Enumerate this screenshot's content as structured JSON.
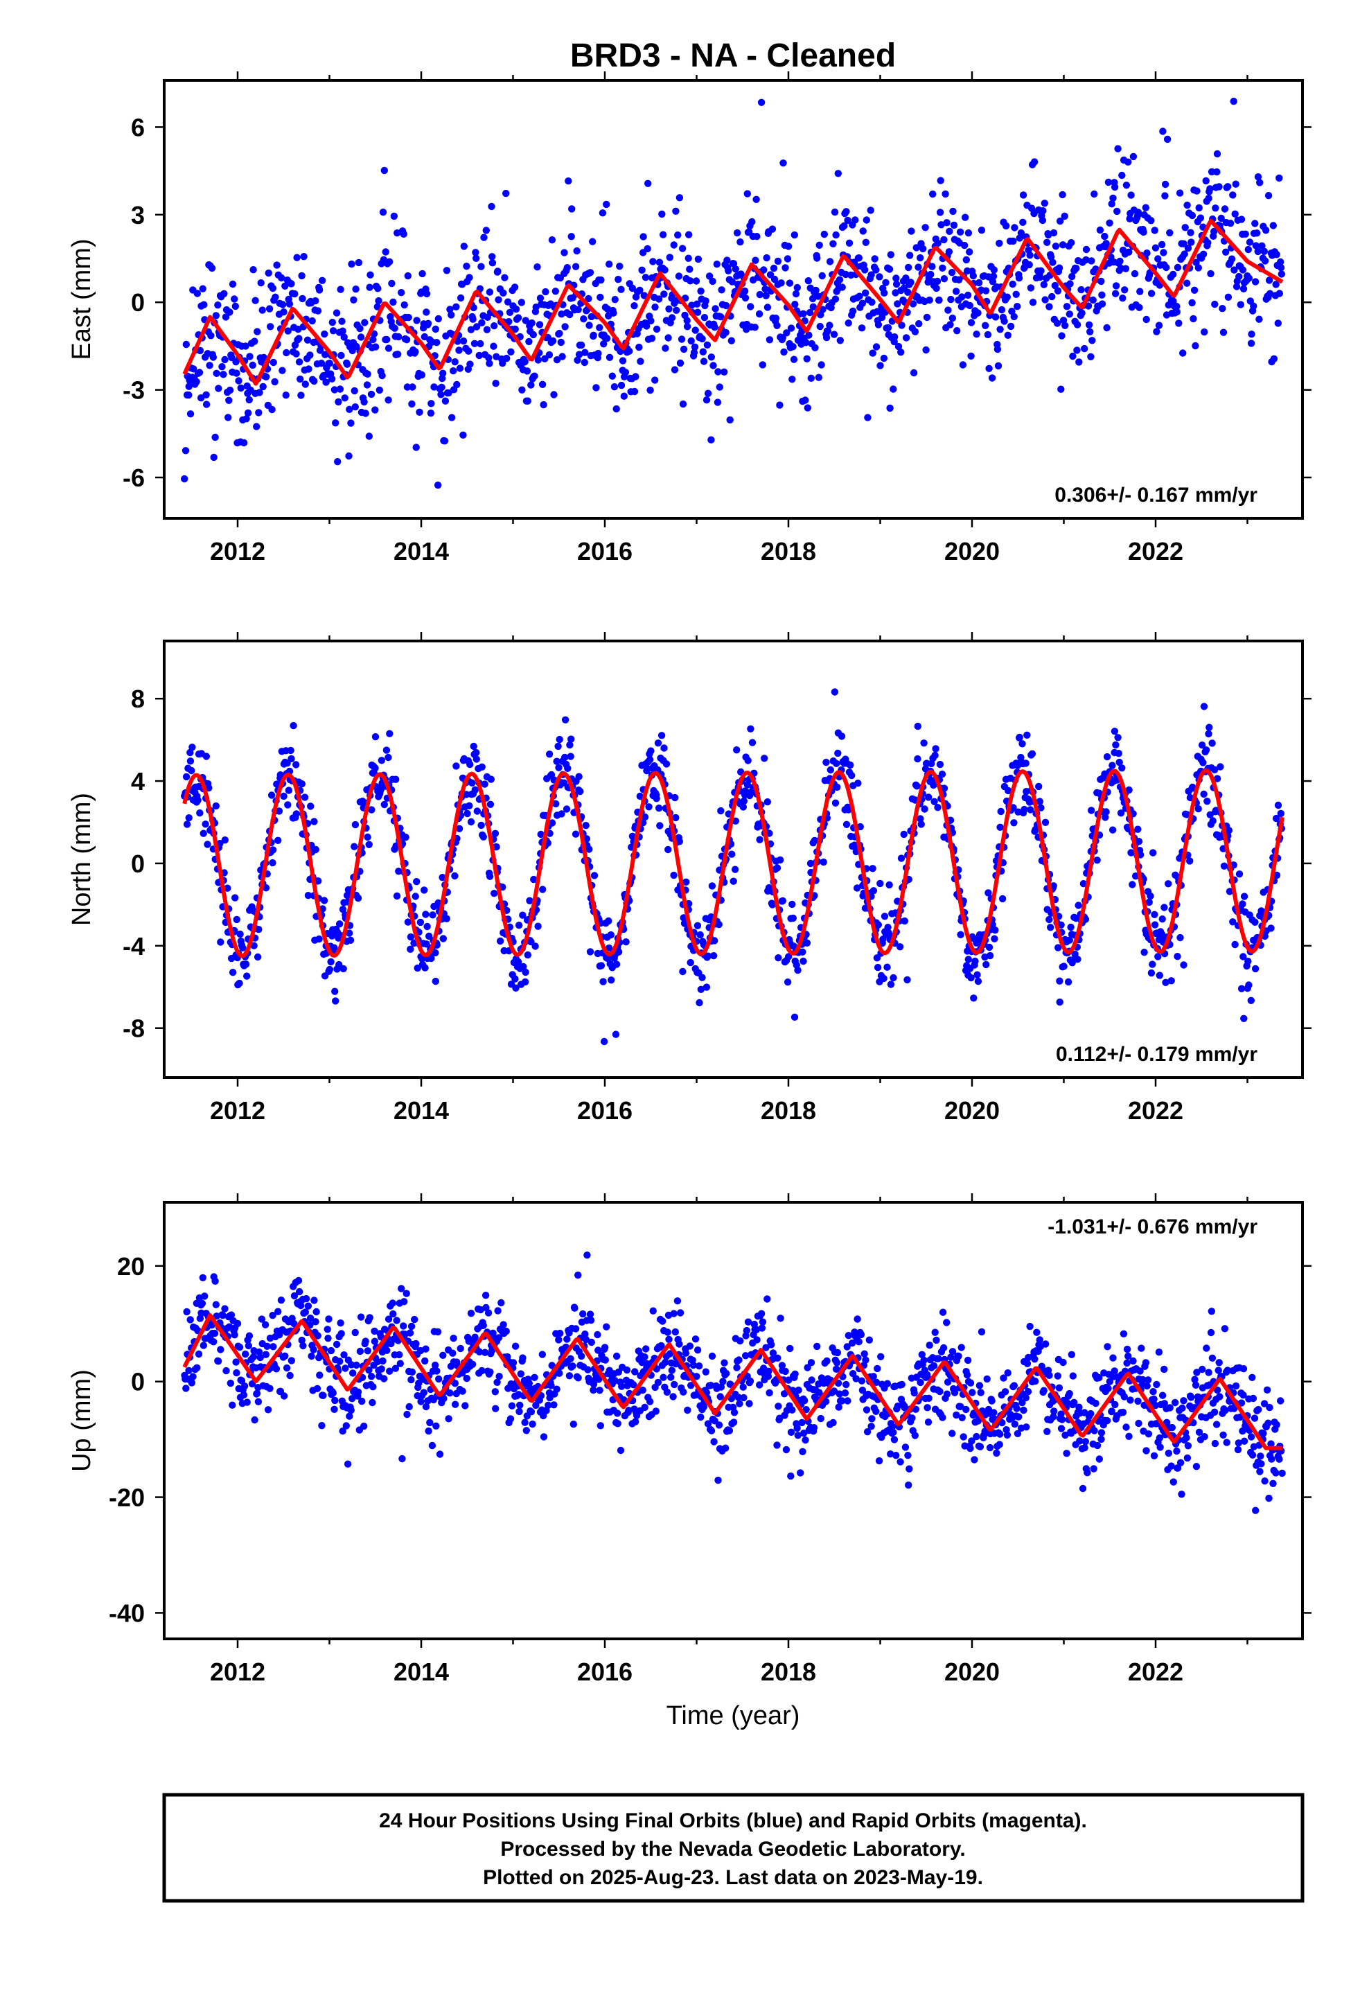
{
  "title": "BRD3  - NA - Cleaned",
  "xlabel": "Time (year)",
  "footer": {
    "line1": "24 Hour Positions Using Final Orbits (blue) and Rapid Orbits (magenta).",
    "line2": "Processed by the Nevada Geodetic Laboratory.",
    "line3": "Plotted on 2025-Aug-23. Last data on 2023-May-19."
  },
  "colors": {
    "points": "#0000ff",
    "fit": "#ff0000",
    "frame": "#000000"
  },
  "chart_data": [
    {
      "type": "scatter",
      "ylabel": "East (mm)",
      "xlim": [
        2011.2,
        2023.6
      ],
      "ylim": [
        -7.4,
        7.6
      ],
      "xticks": [
        "2012",
        "2014",
        "2016",
        "2018",
        "2020",
        "2022"
      ],
      "yticks": [
        "-6",
        "-3",
        "0",
        "3",
        "6"
      ],
      "rate_label": "0.306+/- 0.167 mm/yr",
      "rate_position": "bottom-right",
      "series": [
        {
          "kind": "daily positions",
          "color": "#0000ff",
          "time_start": 2011.42,
          "time_end": 2023.38,
          "scatter_sd_mm": 1.3
        },
        {
          "kind": "model fit",
          "color": "#ff0000",
          "x": [
            2011.4,
            2011.7,
            2012.0,
            2012.2,
            2012.6,
            2013.0,
            2013.2,
            2013.6,
            2014.0,
            2014.2,
            2014.6,
            2015.0,
            2015.2,
            2015.6,
            2016.0,
            2016.2,
            2016.6,
            2017.0,
            2017.2,
            2017.6,
            2018.0,
            2018.2,
            2018.6,
            2019.0,
            2019.2,
            2019.6,
            2020.0,
            2020.2,
            2020.6,
            2021.0,
            2021.2,
            2021.6,
            2022.0,
            2022.2,
            2022.6,
            2023.0,
            2023.38
          ],
          "y": [
            -2.6,
            -0.5,
            -1.8,
            -2.8,
            -0.2,
            -1.7,
            -2.6,
            0.0,
            -1.4,
            -2.3,
            0.4,
            -1.1,
            -2.0,
            0.6,
            -0.7,
            -1.6,
            1.0,
            -0.6,
            -1.3,
            1.3,
            -0.1,
            -1.0,
            1.6,
            0.1,
            -0.7,
            1.9,
            0.6,
            -0.4,
            2.2,
            0.5,
            -0.2,
            2.5,
            1.0,
            0.2,
            2.8,
            1.4,
            0.7
          ]
        }
      ]
    },
    {
      "type": "scatter",
      "ylabel": "North (mm)",
      "xlim": [
        2011.2,
        2023.6
      ],
      "ylim": [
        -10.4,
        10.8
      ],
      "xticks": [
        "2012",
        "2014",
        "2016",
        "2018",
        "2020",
        "2022"
      ],
      "yticks": [
        "-8",
        "-4",
        "0",
        "4",
        "8"
      ],
      "rate_label": "0.112+/- 0.179 mm/yr",
      "rate_position": "bottom-right",
      "series": [
        {
          "kind": "daily positions",
          "color": "#0000ff",
          "time_start": 2011.42,
          "time_end": 2023.38,
          "scatter_sd_mm": 1.1
        },
        {
          "kind": "model fit",
          "color": "#ff0000",
          "annual_amplitude_mm": 4.4,
          "peak_phase_year_fraction": 0.55,
          "time_start": 2011.42,
          "time_end": 2023.38
        }
      ]
    },
    {
      "type": "scatter",
      "ylabel": "Up (mm)",
      "xlim": [
        2011.2,
        2023.6
      ],
      "ylim": [
        -44.5,
        31.0
      ],
      "xticks": [
        "2012",
        "2014",
        "2016",
        "2018",
        "2020",
        "2022"
      ],
      "yticks": [
        "-40",
        "-20",
        "0",
        "20"
      ],
      "rate_label": "-1.031+/- 0.676 mm/yr",
      "rate_position": "top-right",
      "series": [
        {
          "kind": "daily positions",
          "color": "#0000ff",
          "time_start": 2011.42,
          "time_end": 2023.38,
          "scatter_sd_mm": 4.2
        },
        {
          "kind": "model fit",
          "color": "#ff0000",
          "x": [
            2011.42,
            2011.7,
            2012.2,
            2012.7,
            2013.2,
            2013.7,
            2014.2,
            2014.7,
            2015.2,
            2015.7,
            2016.2,
            2016.7,
            2017.2,
            2017.7,
            2018.2,
            2018.7,
            2019.2,
            2019.7,
            2020.2,
            2020.7,
            2021.2,
            2021.7,
            2022.2,
            2022.7,
            2023.2,
            2023.38
          ],
          "y": [
            2.5,
            11.5,
            0.0,
            10.5,
            -1.5,
            9.5,
            -2.5,
            8.5,
            -3.5,
            7.5,
            -4.5,
            6.5,
            -5.5,
            5.5,
            -6.5,
            4.5,
            -7.5,
            3.5,
            -8.5,
            2.5,
            -9.5,
            1.5,
            -10.5,
            0.5,
            -11.5,
            -11.5
          ]
        }
      ]
    }
  ]
}
